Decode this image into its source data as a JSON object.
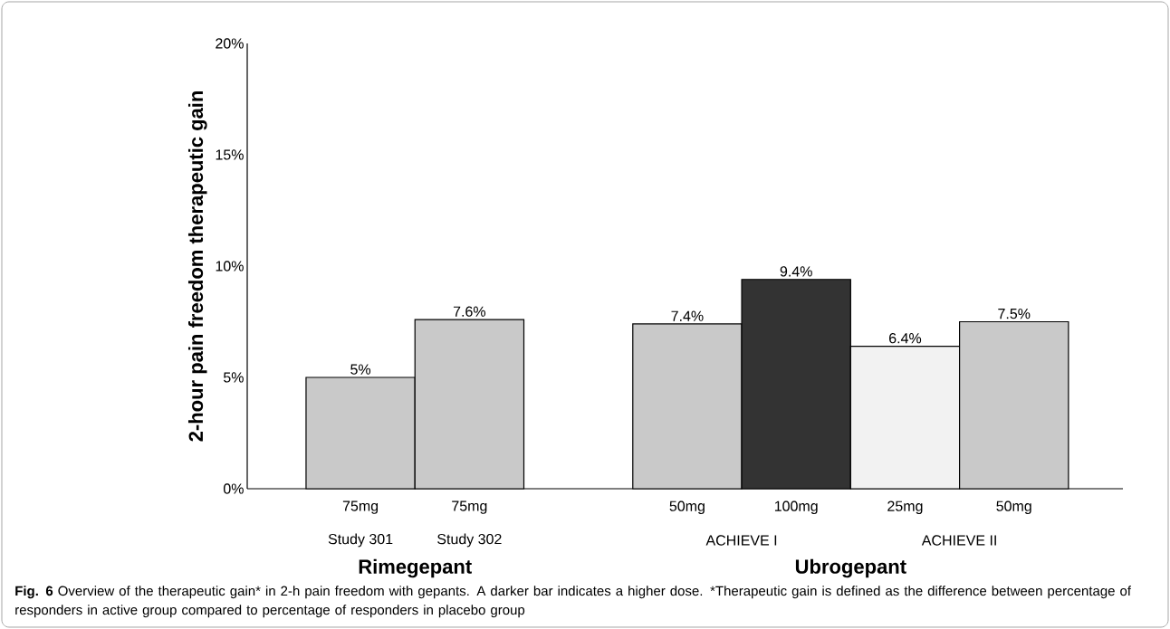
{
  "chart_data": {
    "type": "bar",
    "ylabel": "2-hour pain freedom therapeutic gain",
    "categories": [
      "75mg",
      "75mg",
      null,
      "50mg",
      "100mg",
      "25mg",
      "50mg"
    ],
    "values": [
      5,
      7.6,
      null,
      7.4,
      9.4,
      6.4,
      7.5
    ],
    "value_labels": [
      "5%",
      "7.6%",
      null,
      "7.4%",
      "9.4%",
      "6.4%",
      "7.5%"
    ],
    "colors": [
      "#c9c9c9",
      "#c9c9c9",
      null,
      "#c9c9c9",
      "#333333",
      "#f2f2f2",
      "#c9c9c9"
    ],
    "ylim": [
      0,
      20
    ],
    "yticks": [
      {
        "value": 0,
        "label": "0%"
      },
      {
        "value": 5,
        "label": "5%"
      },
      {
        "value": 10,
        "label": "10%"
      },
      {
        "value": 15,
        "label": "15%"
      },
      {
        "value": 20,
        "label": "20%"
      }
    ],
    "grid": false,
    "annotations": [
      "Study 301",
      "Study 302",
      "ACHIEVE I",
      "ACHIEVE II",
      "Rimegepant",
      "Ubrogepant",
      "Fig. 6",
      "Overview of the therapeutic gain* in 2-h pain freedom with gepants. A darker bar indicates a higher dose.",
      "*Therapeutic gain is defined as the difference between percentage of responders in active group compared to percentage of responders in placebo group"
    ]
  }
}
